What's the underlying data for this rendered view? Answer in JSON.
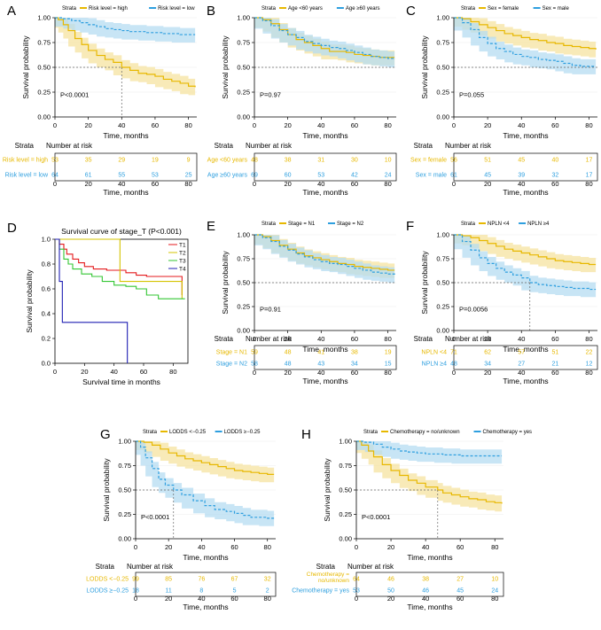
{
  "colors": {
    "orange": "#E7B800",
    "blue": "#2E9FDF",
    "orange_fill": "#F5E3A0",
    "blue_fill": "#B5DCF2",
    "t1": "#E41A1C",
    "t2": "#D4C400",
    "t3": "#33C633",
    "t4": "#1F1FB4"
  },
  "common": {
    "ylabel": "Survival probability",
    "xlabel": "Time, months",
    "strata": "Strata",
    "risk_title": "Number at risk",
    "yticks": [
      "0.00",
      "0.25",
      "0.50",
      "0.75",
      "1.00"
    ],
    "xticks": [
      "0",
      "20",
      "40",
      "60",
      "80"
    ]
  },
  "panels": [
    {
      "letter": "A",
      "pvalue": "P<0.0001",
      "legend": [
        "Risk level = high",
        "Risk level = low"
      ],
      "risk": {
        "labels": [
          "Risk level = high",
          "Risk level = low"
        ],
        "rows": [
          [
            "53",
            "35",
            "29",
            "19",
            "9"
          ],
          [
            "64",
            "61",
            "55",
            "53",
            "25"
          ]
        ]
      },
      "median": 40,
      "chart_data": {
        "type": "line",
        "xlim": [
          0,
          85
        ],
        "ylim": [
          0,
          1
        ],
        "series": [
          {
            "name": "Risk level = high",
            "x": [
              0,
              2,
              5,
              8,
              12,
              16,
              20,
              25,
              30,
              35,
              40,
              45,
              50,
              55,
              60,
              65,
              70,
              75,
              80,
              84
            ],
            "y": [
              1,
              0.98,
              0.93,
              0.87,
              0.79,
              0.73,
              0.67,
              0.62,
              0.58,
              0.55,
              0.5,
              0.47,
              0.44,
              0.43,
              0.41,
              0.38,
              0.36,
              0.34,
              0.31,
              0.3
            ]
          },
          {
            "name": "Risk level = low",
            "x": [
              0,
              5,
              10,
              15,
              20,
              25,
              30,
              35,
              40,
              45,
              50,
              55,
              60,
              65,
              70,
              75,
              80,
              84
            ],
            "y": [
              1,
              0.99,
              0.97,
              0.95,
              0.93,
              0.91,
              0.89,
              0.88,
              0.87,
              0.86,
              0.86,
              0.85,
              0.85,
              0.84,
              0.84,
              0.83,
              0.83,
              0.83
            ]
          }
        ]
      }
    },
    {
      "letter": "B",
      "pvalue": "P=0.97",
      "legend": [
        "Age <60 years",
        "Age ≥60 years"
      ],
      "risk": {
        "labels": [
          "Age <60 years",
          "Age ≥60 years"
        ],
        "rows": [
          [
            "48",
            "38",
            "31",
            "30",
            "10"
          ],
          [
            "69",
            "60",
            "53",
            "42",
            "24"
          ]
        ]
      },
      "median": null,
      "chart_data": {
        "type": "line",
        "xlim": [
          0,
          85
        ],
        "ylim": [
          0,
          1
        ],
        "series": [
          {
            "name": "Age <60 years",
            "x": [
              0,
              5,
              10,
              15,
              20,
              25,
              30,
              35,
              40,
              45,
              50,
              55,
              60,
              65,
              70,
              75,
              80,
              84
            ],
            "y": [
              1,
              0.98,
              0.94,
              0.88,
              0.83,
              0.78,
              0.75,
              0.72,
              0.69,
              0.66,
              0.66,
              0.65,
              0.63,
              0.62,
              0.61,
              0.6,
              0.6,
              0.6
            ]
          },
          {
            "name": "Age ≥60 years",
            "x": [
              0,
              5,
              10,
              15,
              20,
              25,
              30,
              35,
              40,
              45,
              50,
              55,
              60,
              65,
              70,
              75,
              80,
              84
            ],
            "y": [
              1,
              0.97,
              0.92,
              0.87,
              0.83,
              0.8,
              0.76,
              0.74,
              0.72,
              0.7,
              0.69,
              0.67,
              0.65,
              0.63,
              0.61,
              0.6,
              0.59,
              0.58
            ]
          }
        ]
      }
    },
    {
      "letter": "C",
      "pvalue": "P=0.055",
      "legend": [
        "Sex = female",
        "Sex = male"
      ],
      "risk": {
        "labels": [
          "Sex = female",
          "Sex = male"
        ],
        "rows": [
          [
            "56",
            "51",
            "45",
            "40",
            "17"
          ],
          [
            "61",
            "45",
            "39",
            "32",
            "17"
          ]
        ]
      },
      "median": null,
      "chart_data": {
        "type": "line",
        "xlim": [
          0,
          85
        ],
        "ylim": [
          0,
          1
        ],
        "series": [
          {
            "name": "Sex = female",
            "x": [
              0,
              5,
              10,
              15,
              20,
              25,
              30,
              35,
              40,
              45,
              50,
              55,
              60,
              65,
              70,
              75,
              80,
              84
            ],
            "y": [
              1,
              0.99,
              0.96,
              0.93,
              0.9,
              0.87,
              0.84,
              0.82,
              0.8,
              0.78,
              0.77,
              0.75,
              0.74,
              0.72,
              0.71,
              0.7,
              0.69,
              0.68
            ]
          },
          {
            "name": "Sex = male",
            "x": [
              0,
              5,
              10,
              15,
              20,
              25,
              30,
              35,
              40,
              45,
              50,
              55,
              60,
              65,
              70,
              75,
              80,
              84
            ],
            "y": [
              1,
              0.95,
              0.88,
              0.8,
              0.74,
              0.69,
              0.66,
              0.63,
              0.61,
              0.6,
              0.58,
              0.57,
              0.56,
              0.54,
              0.52,
              0.51,
              0.51,
              0.51
            ]
          }
        ]
      }
    },
    {
      "letter": "E",
      "pvalue": "P=0.91",
      "legend": [
        "Stage = N1",
        "Stage = N2"
      ],
      "risk": {
        "labels": [
          "Stage = N1",
          "Stage = N2"
        ],
        "rows": [
          [
            "59",
            "48",
            "41",
            "38",
            "19"
          ],
          [
            "58",
            "48",
            "43",
            "34",
            "15"
          ]
        ]
      },
      "median": null,
      "chart_data": {
        "type": "line",
        "xlim": [
          0,
          85
        ],
        "ylim": [
          0,
          1
        ],
        "series": [
          {
            "name": "Stage = N1",
            "x": [
              0,
              5,
              10,
              15,
              20,
              25,
              30,
              35,
              40,
              45,
              50,
              55,
              60,
              65,
              70,
              75,
              80,
              84
            ],
            "y": [
              1,
              0.98,
              0.94,
              0.89,
              0.85,
              0.81,
              0.78,
              0.76,
              0.74,
              0.72,
              0.7,
              0.69,
              0.67,
              0.66,
              0.65,
              0.64,
              0.63,
              0.63
            ]
          },
          {
            "name": "Stage = N2",
            "x": [
              0,
              5,
              10,
              15,
              20,
              25,
              30,
              35,
              40,
              45,
              50,
              55,
              60,
              65,
              70,
              75,
              80,
              84
            ],
            "y": [
              1,
              0.97,
              0.93,
              0.88,
              0.84,
              0.8,
              0.77,
              0.74,
              0.72,
              0.7,
              0.69,
              0.67,
              0.65,
              0.63,
              0.61,
              0.6,
              0.59,
              0.58
            ]
          }
        ]
      }
    },
    {
      "letter": "F",
      "pvalue": "P=0.0056",
      "legend": [
        "NPLN <4",
        "NPLN ≥4"
      ],
      "risk": {
        "labels": [
          "NPLN <4",
          "NPLN ≥4"
        ],
        "rows": [
          [
            "71",
            "62",
            "57",
            "51",
            "22"
          ],
          [
            "48",
            "34",
            "27",
            "21",
            "12"
          ]
        ]
      },
      "median": 45,
      "chart_data": {
        "type": "line",
        "xlim": [
          0,
          85
        ],
        "ylim": [
          0,
          1
        ],
        "series": [
          {
            "name": "NPLN <4",
            "x": [
              0,
              5,
              10,
              15,
              20,
              25,
              30,
              35,
              40,
              45,
              50,
              55,
              60,
              65,
              70,
              75,
              80,
              84
            ],
            "y": [
              1,
              0.99,
              0.97,
              0.94,
              0.91,
              0.88,
              0.85,
              0.83,
              0.81,
              0.79,
              0.77,
              0.75,
              0.73,
              0.72,
              0.71,
              0.7,
              0.69,
              0.69
            ]
          },
          {
            "name": "NPLN ≥4",
            "x": [
              0,
              5,
              10,
              15,
              20,
              25,
              30,
              35,
              40,
              45,
              50,
              55,
              60,
              65,
              70,
              75,
              80,
              84
            ],
            "y": [
              1,
              0.93,
              0.84,
              0.76,
              0.7,
              0.65,
              0.61,
              0.58,
              0.55,
              0.5,
              0.48,
              0.47,
              0.46,
              0.45,
              0.44,
              0.44,
              0.43,
              0.43
            ]
          }
        ]
      }
    },
    {
      "letter": "G",
      "pvalue": "P<0.0001",
      "legend": [
        "LODDS <−0.25",
        "LODDS ≥−0.25"
      ],
      "risk": {
        "labels": [
          "LODDS <−0.25",
          "LODDS ≥−0.25"
        ],
        "rows": [
          [
            "99",
            "85",
            "76",
            "67",
            "32"
          ],
          [
            "18",
            "11",
            "8",
            "5",
            "2"
          ]
        ]
      },
      "median": 23,
      "chart_data": {
        "type": "line",
        "xlim": [
          0,
          85
        ],
        "ylim": [
          0,
          1
        ],
        "series": [
          {
            "name": "LODDS <−0.25",
            "x": [
              0,
              5,
              10,
              15,
              20,
              25,
              30,
              35,
              40,
              45,
              50,
              55,
              60,
              65,
              70,
              75,
              80,
              84
            ],
            "y": [
              1,
              0.99,
              0.96,
              0.92,
              0.88,
              0.85,
              0.82,
              0.8,
              0.78,
              0.76,
              0.74,
              0.72,
              0.7,
              0.69,
              0.68,
              0.67,
              0.66,
              0.66
            ]
          },
          {
            "name": "LODDS ≥−0.25",
            "x": [
              0,
              3,
              6,
              10,
              14,
              18,
              23,
              28,
              35,
              42,
              48,
              55,
              60,
              65,
              70,
              75,
              80,
              84
            ],
            "y": [
              1,
              0.94,
              0.83,
              0.72,
              0.61,
              0.55,
              0.5,
              0.45,
              0.39,
              0.34,
              0.3,
              0.28,
              0.26,
              0.24,
              0.22,
              0.22,
              0.21,
              0.21
            ]
          }
        ]
      }
    },
    {
      "letter": "H",
      "pvalue": "P<0.0001",
      "legend": [
        "Chemotherapy = no/unknown",
        "Chemotherapy = yes"
      ],
      "risk": {
        "labels": [
          "Chemotherapy = no/unknown",
          "Chemotherapy = yes"
        ],
        "rows": [
          [
            "64",
            "46",
            "38",
            "27",
            "10"
          ],
          [
            "53",
            "50",
            "46",
            "45",
            "24"
          ]
        ]
      },
      "median": 47,
      "chart_data": {
        "type": "line",
        "xlim": [
          0,
          85
        ],
        "ylim": [
          0,
          1
        ],
        "series": [
          {
            "name": "Chemotherapy = no/unknown",
            "x": [
              0,
              3,
              7,
              10,
              15,
              20,
              25,
              30,
              35,
              40,
              47,
              50,
              55,
              60,
              65,
              70,
              75,
              80,
              84
            ],
            "y": [
              1,
              0.96,
              0.9,
              0.84,
              0.76,
              0.7,
              0.65,
              0.6,
              0.57,
              0.53,
              0.5,
              0.47,
              0.45,
              0.43,
              0.41,
              0.4,
              0.38,
              0.37,
              0.36
            ]
          },
          {
            "name": "Chemotherapy = yes",
            "x": [
              0,
              5,
              10,
              15,
              20,
              25,
              30,
              35,
              40,
              45,
              50,
              55,
              60,
              65,
              70,
              75,
              80,
              84
            ],
            "y": [
              1,
              0.99,
              0.97,
              0.94,
              0.92,
              0.9,
              0.89,
              0.88,
              0.87,
              0.87,
              0.86,
              0.86,
              0.85,
              0.85,
              0.85,
              0.85,
              0.85,
              0.85
            ]
          }
        ]
      }
    }
  ],
  "panel_d": {
    "letter": "D",
    "title": "Survival curve of stage_T (P<0.001)",
    "ylabel": "Survival probability",
    "xlabel": "Survival time in months",
    "yticks": [
      "0.0",
      "0.2",
      "0.4",
      "0.6",
      "0.8",
      "1.0"
    ],
    "xticks": [
      "0",
      "20",
      "40",
      "60",
      "80"
    ],
    "legend": [
      "T1",
      "T2",
      "T3",
      "T4"
    ],
    "chart_data": {
      "type": "line",
      "xlim": [
        0,
        90
      ],
      "ylim": [
        0,
        1
      ],
      "series": [
        {
          "name": "T1",
          "x": [
            0,
            3,
            6,
            8,
            12,
            16,
            20,
            26,
            30,
            35,
            40,
            48,
            55,
            62,
            70,
            78,
            86
          ],
          "y": [
            1,
            0.96,
            0.92,
            0.88,
            0.84,
            0.81,
            0.78,
            0.76,
            0.76,
            0.75,
            0.75,
            0.73,
            0.71,
            0.7,
            0.7,
            0.7,
            0.55
          ]
        },
        {
          "name": "T2",
          "x": [
            0,
            8,
            20,
            30,
            40,
            44,
            70,
            86
          ],
          "y": [
            1,
            1,
            1,
            1,
            1,
            0.66,
            0.66,
            0.52
          ]
        },
        {
          "name": "T3",
          "x": [
            0,
            3,
            6,
            9,
            12,
            18,
            25,
            32,
            40,
            48,
            55,
            62,
            70,
            78,
            88
          ],
          "y": [
            1,
            0.92,
            0.84,
            0.8,
            0.76,
            0.72,
            0.7,
            0.66,
            0.63,
            0.62,
            0.6,
            0.55,
            0.52,
            0.52,
            0.52
          ]
        },
        {
          "name": "T4",
          "x": [
            0,
            3,
            5,
            25,
            49
          ],
          "y": [
            1,
            0.66,
            0.33,
            0.33,
            0.0
          ]
        }
      ]
    }
  }
}
